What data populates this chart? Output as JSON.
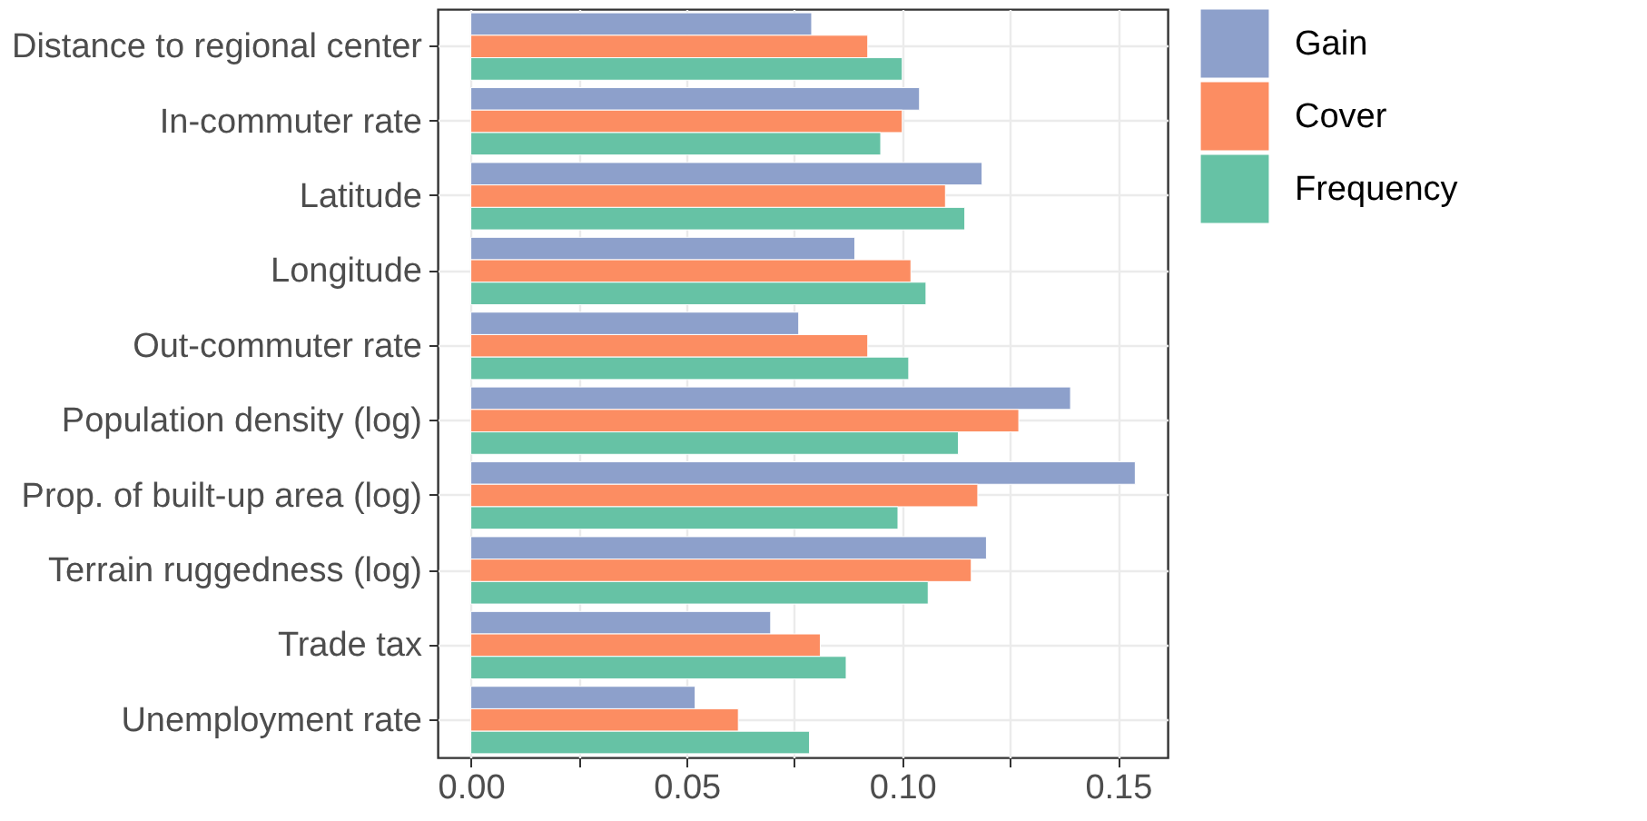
{
  "chart_data": {
    "type": "bar",
    "orientation": "horizontal",
    "categories": [
      "Distance to regional center",
      "In-commuter rate",
      "Latitude",
      "Longitude",
      "Out-commuter rate",
      "Population density (log)",
      "Prop. of built-up area (log)",
      "Terrain ruggedness (log)",
      "Trade tax",
      "Unemployment rate"
    ],
    "series": [
      {
        "name": "Gain",
        "color": "#8da0cb",
        "values": [
          0.079,
          0.104,
          0.1185,
          0.089,
          0.076,
          0.139,
          0.154,
          0.1195,
          0.0695,
          0.052
        ]
      },
      {
        "name": "Cover",
        "color": "#fc8d62",
        "values": [
          0.092,
          0.1,
          0.11,
          0.102,
          0.092,
          0.127,
          0.1175,
          0.116,
          0.081,
          0.062
        ]
      },
      {
        "name": "Frequency",
        "color": "#66c2a5",
        "values": [
          0.1,
          0.095,
          0.1145,
          0.1055,
          0.1015,
          0.113,
          0.099,
          0.106,
          0.087,
          0.0785
        ]
      }
    ],
    "xlim": [
      -0.0077,
      0.1615
    ],
    "xticks": [
      {
        "value": 0,
        "label": "0.00"
      },
      {
        "value": 0.025,
        "label": null
      },
      {
        "value": 0.05,
        "label": "0.05"
      },
      {
        "value": 0.075,
        "label": null
      },
      {
        "value": 0.1,
        "label": "0.10"
      },
      {
        "value": 0.125,
        "label": null
      },
      {
        "value": 0.15,
        "label": "0.15"
      }
    ],
    "grid": true,
    "legend": "right"
  }
}
